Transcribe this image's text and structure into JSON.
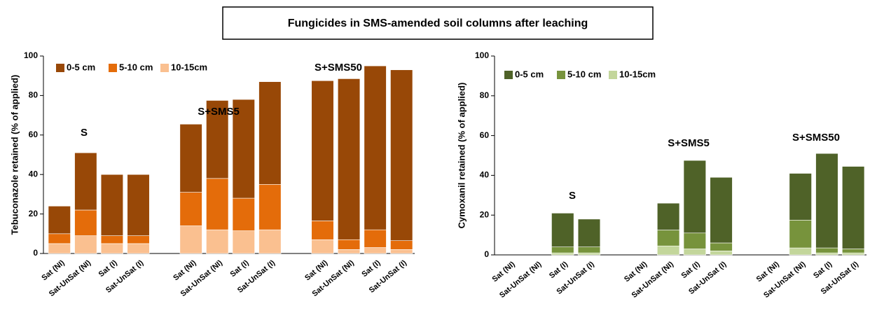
{
  "title": "Fungicides in SMS-amended soil columns after leaching",
  "chart_data": [
    {
      "type": "stacked_bar",
      "ylabel": "Tebuconazole retained  (% of applied)",
      "categories": [
        "Sat (NI)",
        "Sat-UnSat (NI)",
        "Sat (I)",
        "Sat-UnSat (I)",
        null,
        "Sat (NI)",
        "Sat-UnSat (NI)",
        "Sat (I)",
        "Sat-UnSat (I)",
        null,
        "Sat (NI)",
        "Sat-UnSat (NI)",
        "Sat (I)",
        "Sat-UnSat (I)"
      ],
      "series": [
        {
          "name": "10-15cm",
          "color": "#fac090",
          "values": [
            5,
            9,
            5,
            5,
            null,
            14,
            12,
            11.5,
            12,
            null,
            7,
            2,
            3,
            2
          ]
        },
        {
          "name": "5-10 cm",
          "color": "#e46c0a",
          "values": [
            5,
            13,
            4,
            4,
            null,
            17,
            26,
            16.5,
            23,
            null,
            9.5,
            5,
            9,
            4.5
          ]
        },
        {
          "name": "0-5 cm",
          "color": "#984807",
          "values": [
            14,
            29,
            31,
            31,
            null,
            34.5,
            39.5,
            50,
            52,
            null,
            71,
            81.5,
            83,
            86.5
          ]
        }
      ],
      "annotations": [
        "S",
        "S+SMS5",
        "S+SMS50"
      ],
      "ylim": [
        0,
        100
      ],
      "yticks": [
        0,
        20,
        40,
        60,
        80,
        100
      ],
      "legend": "upper left"
    },
    {
      "type": "stacked_bar",
      "ylabel": "Cymoxanil retained  (% of applied)",
      "categories": [
        "Sat (NI)",
        "Sat-UnSat (NI)",
        "Sat (I)",
        "Sat-UnSat (I)",
        null,
        "Sat (NI)",
        "Sat-UnSat (NI)",
        "Sat (I)",
        "Sat-UnSat (I)",
        null,
        "Sat (NI)",
        "Sat-UnSat (NI)",
        "Sat (I)",
        "Sat-UnSat (I)"
      ],
      "series": [
        {
          "name": "10-15cm",
          "color": "#c3d69b",
          "values": [
            0,
            0,
            1,
            1,
            null,
            0,
            4.5,
            3,
            2,
            null,
            0,
            3.5,
            1,
            1
          ]
        },
        {
          "name": "5-10 cm",
          "color": "#77933c",
          "values": [
            0,
            0,
            3,
            3,
            null,
            0,
            8,
            8,
            4,
            null,
            0,
            14,
            2.5,
            2
          ]
        },
        {
          "name": "0-5 cm",
          "color": "#4f6228",
          "values": [
            0,
            0,
            17,
            14,
            null,
            0,
            13.5,
            36.5,
            33,
            null,
            0,
            23.5,
            47.5,
            41.5
          ]
        }
      ],
      "annotations": [
        "S",
        "S+SMS5",
        "S+SMS50"
      ],
      "ylim": [
        0,
        100
      ],
      "yticks": [
        0,
        20,
        40,
        60,
        80,
        100
      ],
      "legend": "upper left"
    }
  ]
}
